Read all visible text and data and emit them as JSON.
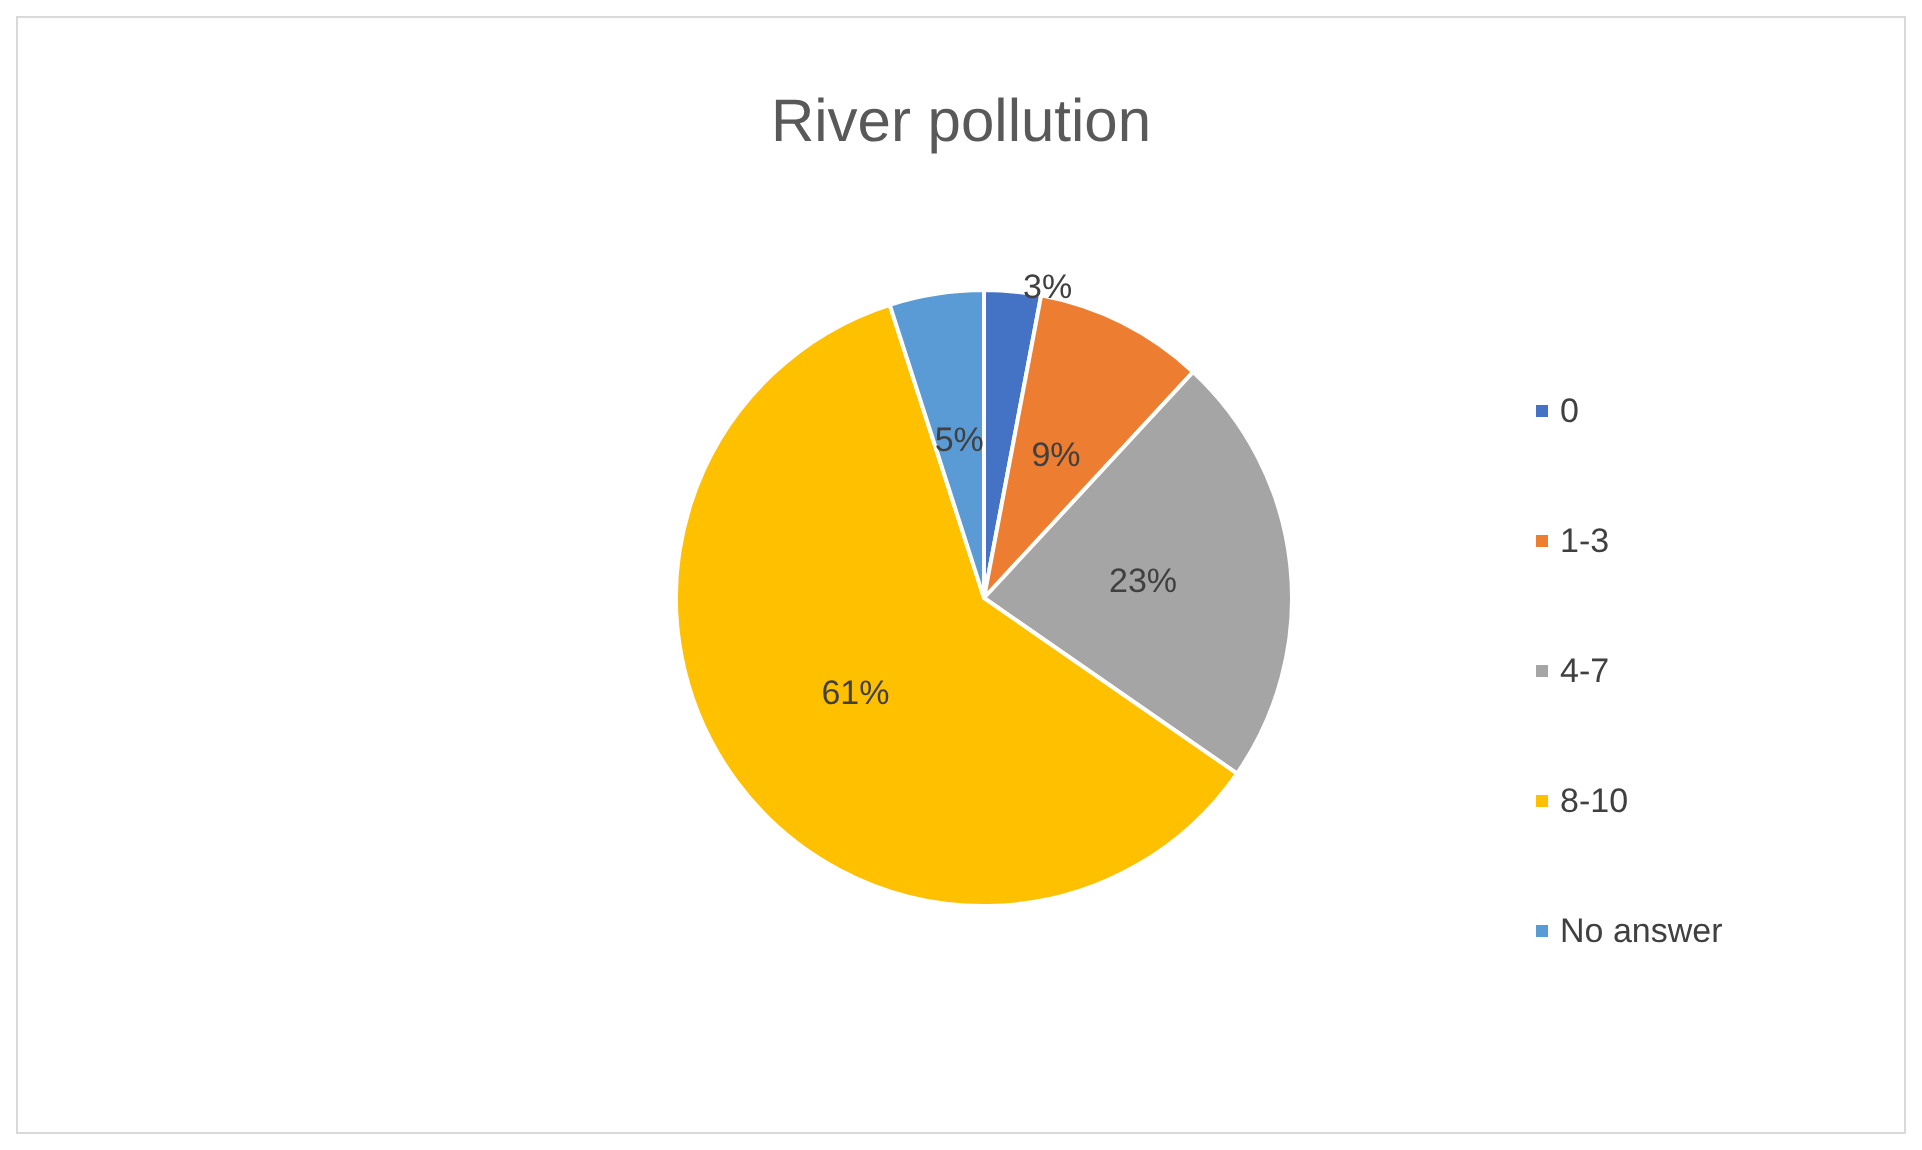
{
  "chart_data": {
    "type": "pie",
    "title": "River pollution",
    "categories": [
      "0",
      "1-3",
      "4-7",
      "8-10",
      "No answer"
    ],
    "values": [
      3,
      9,
      23,
      61,
      5
    ],
    "colors": [
      "#4472c4",
      "#ed7d31",
      "#a5a5a5",
      "#ffc000",
      "#5b9bd5"
    ],
    "value_labels": [
      "3%",
      "9%",
      "23%",
      "61%",
      "5%"
    ],
    "legend": "right"
  }
}
